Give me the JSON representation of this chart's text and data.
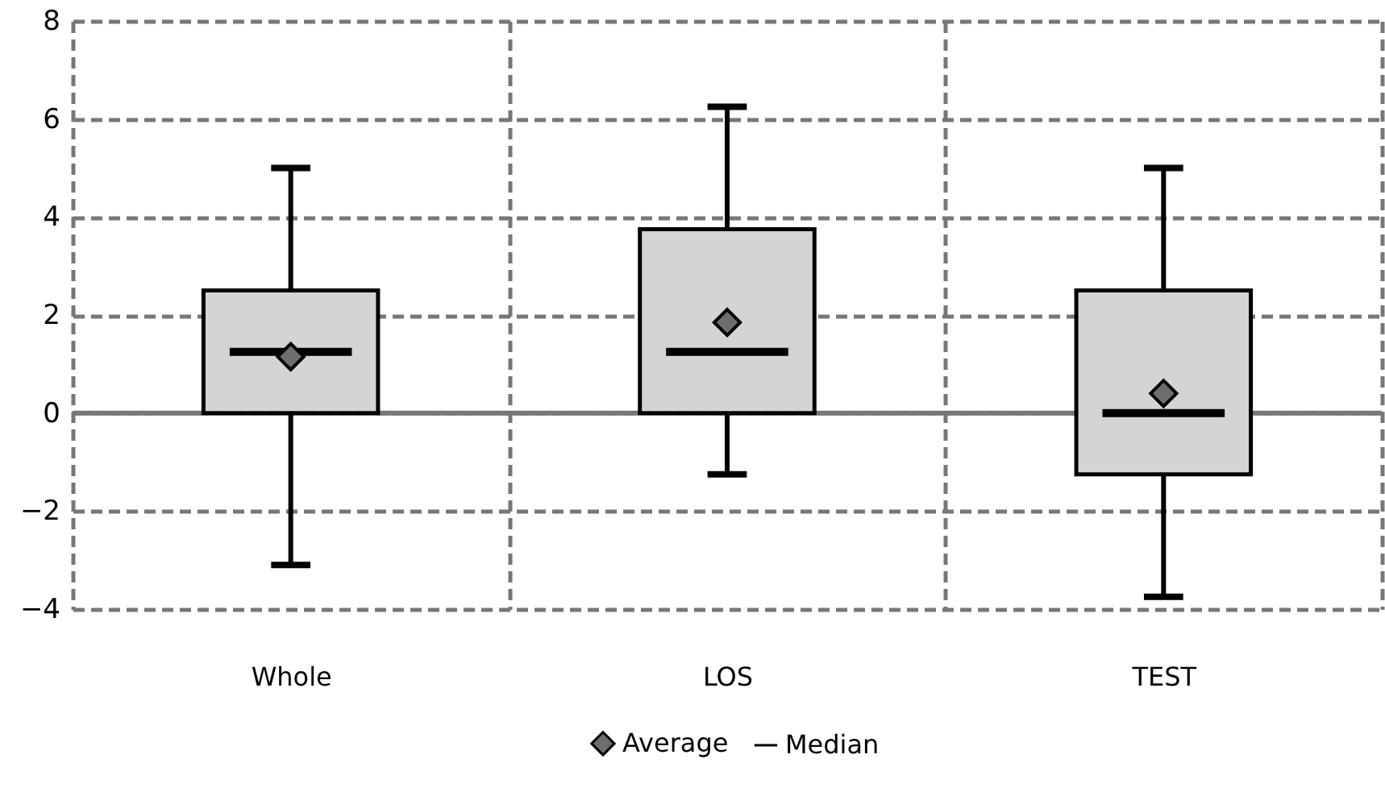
{
  "chart_data": {
    "type": "box",
    "categories": [
      "Whole",
      "LOS",
      "TEST"
    ],
    "ylim": [
      -4,
      8
    ],
    "yticks": [
      -4,
      -2,
      0,
      2,
      4,
      6,
      8
    ],
    "grid": true,
    "legend": "bottom",
    "ref_lines": [
      {
        "axis": "y",
        "value": 0,
        "color": "#777777"
      }
    ],
    "series": [
      {
        "name": "Average",
        "type": "scatter",
        "marker": "diamond",
        "color": "#6e6e6e",
        "x": [
          "Whole",
          "LOS",
          "TEST"
        ],
        "values": [
          1.15,
          1.85,
          0.4
        ]
      },
      {
        "name": "Median",
        "type": "box",
        "color": "#000000",
        "colors": [
          "#d4d4d4",
          "#d4d4d4",
          "#d4d4d4"
        ],
        "boxes": [
          {
            "low": -3.1,
            "q1": 0,
            "median": 1.25,
            "q3": 2.5,
            "high": 5
          },
          {
            "low": -1.25,
            "q1": 0,
            "median": 1.25,
            "q3": 3.75,
            "high": 6.25
          },
          {
            "low": -3.75,
            "q1": -1.25,
            "median": 0,
            "q3": 2.5,
            "high": 5
          }
        ]
      }
    ]
  }
}
